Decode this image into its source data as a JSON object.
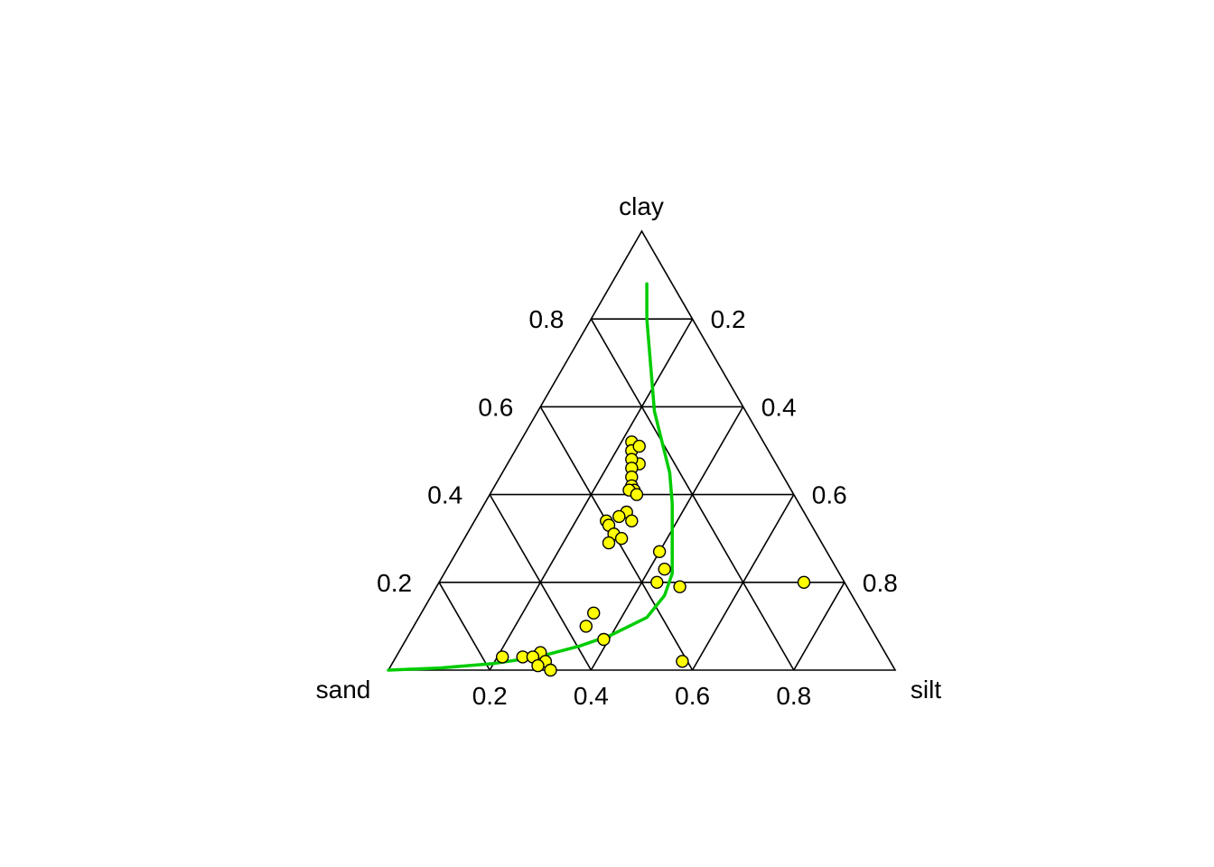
{
  "chart_data": {
    "type": "scatter",
    "subtype": "ternary",
    "axes": {
      "top": "clay",
      "bottom_left": "sand",
      "bottom_right": "silt"
    },
    "ticks": [
      0.2,
      0.4,
      0.6,
      0.8
    ],
    "tick_labels": [
      "0.2",
      "0.4",
      "0.6",
      "0.8"
    ],
    "grid": true,
    "point_style": {
      "fill": "#ffff00",
      "stroke": "#000000"
    },
    "curve_color": "#00cc00",
    "points": [
      {
        "clay": 0.52,
        "silt": 0.22,
        "sand": 0.26
      },
      {
        "clay": 0.5,
        "silt": 0.23,
        "sand": 0.27
      },
      {
        "clay": 0.51,
        "silt": 0.24,
        "sand": 0.25
      },
      {
        "clay": 0.47,
        "silt": 0.26,
        "sand": 0.27
      },
      {
        "clay": 0.48,
        "silt": 0.24,
        "sand": 0.28
      },
      {
        "clay": 0.46,
        "silt": 0.25,
        "sand": 0.29
      },
      {
        "clay": 0.44,
        "silt": 0.26,
        "sand": 0.3
      },
      {
        "clay": 0.42,
        "silt": 0.27,
        "sand": 0.31
      },
      {
        "clay": 0.41,
        "silt": 0.28,
        "sand": 0.31
      },
      {
        "clay": 0.41,
        "silt": 0.27,
        "sand": 0.32
      },
      {
        "clay": 0.4,
        "silt": 0.29,
        "sand": 0.31
      },
      {
        "clay": 0.36,
        "silt": 0.29,
        "sand": 0.35
      },
      {
        "clay": 0.34,
        "silt": 0.31,
        "sand": 0.35
      },
      {
        "clay": 0.35,
        "silt": 0.28,
        "sand": 0.37
      },
      {
        "clay": 0.34,
        "silt": 0.26,
        "sand": 0.4
      },
      {
        "clay": 0.33,
        "silt": 0.27,
        "sand": 0.4
      },
      {
        "clay": 0.31,
        "silt": 0.29,
        "sand": 0.4
      },
      {
        "clay": 0.29,
        "silt": 0.29,
        "sand": 0.42
      },
      {
        "clay": 0.3,
        "silt": 0.31,
        "sand": 0.39
      },
      {
        "clay": 0.2,
        "silt": 0.43,
        "sand": 0.37
      },
      {
        "clay": 0.27,
        "silt": 0.4,
        "sand": 0.33
      },
      {
        "clay": 0.23,
        "silt": 0.43,
        "sand": 0.34
      },
      {
        "clay": 0.19,
        "silt": 0.48,
        "sand": 0.33
      },
      {
        "clay": 0.13,
        "silt": 0.34,
        "sand": 0.53
      },
      {
        "clay": 0.1,
        "silt": 0.34,
        "sand": 0.56
      },
      {
        "clay": 0.07,
        "silt": 0.39,
        "sand": 0.54
      },
      {
        "clay": 0.04,
        "silt": 0.28,
        "sand": 0.68
      },
      {
        "clay": 0.02,
        "silt": 0.3,
        "sand": 0.68
      },
      {
        "clay": 0.03,
        "silt": 0.25,
        "sand": 0.72
      },
      {
        "clay": 0.03,
        "silt": 0.27,
        "sand": 0.7
      },
      {
        "clay": 0.03,
        "silt": 0.21,
        "sand": 0.76
      },
      {
        "clay": 0.01,
        "silt": 0.29,
        "sand": 0.7
      },
      {
        "clay": 0.0,
        "silt": 0.32,
        "sand": 0.68
      },
      {
        "clay": 0.02,
        "silt": 0.57,
        "sand": 0.41
      },
      {
        "clay": 0.2,
        "silt": 0.72,
        "sand": 0.08
      }
    ],
    "curve": [
      {
        "clay": 0.0,
        "silt": 0.0,
        "sand": 1.0
      },
      {
        "clay": 0.005,
        "silt": 0.1,
        "sand": 0.895
      },
      {
        "clay": 0.015,
        "silt": 0.2,
        "sand": 0.785
      },
      {
        "clay": 0.03,
        "silt": 0.28,
        "sand": 0.69
      },
      {
        "clay": 0.055,
        "silt": 0.35,
        "sand": 0.595
      },
      {
        "clay": 0.08,
        "silt": 0.4,
        "sand": 0.52
      },
      {
        "clay": 0.12,
        "silt": 0.45,
        "sand": 0.43
      },
      {
        "clay": 0.17,
        "silt": 0.46,
        "sand": 0.37
      },
      {
        "clay": 0.22,
        "silt": 0.45,
        "sand": 0.33
      },
      {
        "clay": 0.3,
        "silt": 0.41,
        "sand": 0.29
      },
      {
        "clay": 0.38,
        "silt": 0.37,
        "sand": 0.25
      },
      {
        "clay": 0.45,
        "silt": 0.33,
        "sand": 0.22
      },
      {
        "clay": 0.52,
        "silt": 0.28,
        "sand": 0.2
      },
      {
        "clay": 0.59,
        "silt": 0.23,
        "sand": 0.18
      },
      {
        "clay": 0.66,
        "silt": 0.19,
        "sand": 0.15
      },
      {
        "clay": 0.73,
        "silt": 0.15,
        "sand": 0.12
      },
      {
        "clay": 0.8,
        "silt": 0.11,
        "sand": 0.09
      },
      {
        "clay": 0.88,
        "silt": 0.07,
        "sand": 0.05
      }
    ]
  }
}
